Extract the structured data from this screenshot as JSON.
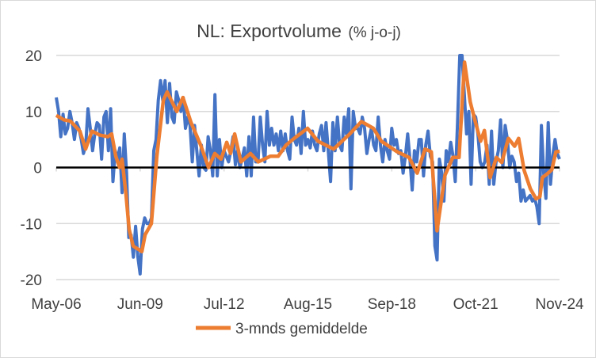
{
  "chart_data": {
    "type": "line",
    "title": "NL: Exportvolume",
    "title_unit": "(% j-o-j)",
    "xlabel": "",
    "ylabel": "",
    "ylim": [
      -20,
      20
    ],
    "yticks": [
      "20",
      "10",
      "0",
      "-10",
      "-20"
    ],
    "ytick_values": [
      20,
      10,
      0,
      -10,
      -20
    ],
    "xticks": [
      "May-06",
      "Jun-09",
      "Jul-12",
      "Aug-15",
      "Sep-18",
      "Oct-21",
      "Nov-24"
    ],
    "xtick_month_index": [
      0,
      37,
      74,
      111,
      148,
      185,
      222
    ],
    "x_start": "May-06",
    "x_frequency": "monthly",
    "grid": true,
    "legend_position": "bottom",
    "colors": {
      "monthly": "#4472c4",
      "avg": "#ed7d31",
      "zero": "#000000",
      "grid": "#d9d9d9"
    },
    "series": [
      {
        "name": "",
        "in_legend": false,
        "values": [
          12.5,
          10,
          5.5,
          9.5,
          6,
          7,
          10,
          8,
          5,
          8,
          7,
          5,
          2.5,
          4,
          10.5,
          7,
          3,
          6,
          8,
          7.5,
          1.5,
          9,
          10,
          3,
          10.5,
          -2.5,
          3,
          1.5,
          3.5,
          -4.5,
          6,
          -1,
          -12.5,
          -12,
          -16,
          -10.5,
          -16,
          -19,
          -11,
          -9,
          -10,
          -10,
          -9,
          3,
          5,
          12,
          15.5,
          12,
          15.5,
          8,
          15,
          9,
          8,
          13.5,
          12,
          10,
          12.5,
          7,
          9,
          7.5,
          1,
          7.5,
          3,
          -1.5,
          4,
          0,
          -0.5,
          5.5,
          3,
          -1.5,
          13,
          -1.5,
          5,
          0,
          3,
          2,
          1,
          3,
          5.5,
          0.5,
          3,
          0,
          1.5,
          3.5,
          -1.5,
          5.5,
          -1.5,
          9,
          1,
          1,
          9,
          4,
          1,
          10,
          4,
          7,
          4,
          6,
          3,
          6.5,
          3,
          6,
          3,
          1.5,
          9,
          5,
          4,
          7,
          2.5,
          10,
          4,
          5,
          3.5,
          6.5,
          4,
          3,
          6,
          7.5,
          3,
          8,
          3,
          -2.5,
          8,
          3,
          9,
          4,
          3,
          9,
          6,
          10.5,
          -3.8,
          10,
          7,
          7,
          6,
          9,
          7,
          2.5,
          5,
          7,
          4,
          3,
          9,
          4,
          1,
          5,
          3,
          1.5,
          7,
          4,
          5,
          2.5,
          3,
          -1,
          2,
          6,
          1.5,
          -4,
          3,
          1,
          5,
          5,
          -1.5,
          4,
          6.5,
          2,
          1,
          -14,
          -16.5,
          1.5,
          -1,
          -6,
          3,
          1,
          4.5,
          2,
          -2.5,
          8,
          20,
          20,
          13,
          6,
          10,
          -3,
          9.5,
          9,
          6,
          1,
          0,
          1,
          4,
          -3,
          6.5,
          -3,
          1,
          3,
          8.5,
          0,
          7.5,
          5,
          0,
          2,
          1,
          -2.5,
          -1,
          -6,
          -4,
          -6,
          -5.5,
          -5,
          -6,
          -5.5,
          -7,
          -10,
          7.5,
          -1,
          -5.5,
          8,
          -3,
          2,
          5,
          2.5,
          1.5
        ]
      },
      {
        "name": "3-mnds gemiddelde",
        "in_legend": true,
        "points_year_value": [
          [
            2006.33,
            9.3
          ],
          [
            2006.62,
            8.5
          ],
          [
            2006.85,
            8.3
          ],
          [
            2007.2,
            6.5
          ],
          [
            2007.41,
            3.3
          ],
          [
            2007.64,
            6.5
          ],
          [
            2007.93,
            5.8
          ],
          [
            2008.23,
            5.5
          ],
          [
            2008.37,
            6
          ],
          [
            2008.52,
            2
          ],
          [
            2008.66,
            0
          ],
          [
            2008.75,
            1.5
          ],
          [
            2008.9,
            -5
          ],
          [
            2009.01,
            -11
          ],
          [
            2009.16,
            -14
          ],
          [
            2009.48,
            -15
          ],
          [
            2009.6,
            -12
          ],
          [
            2009.83,
            -10
          ],
          [
            2010.03,
            2
          ],
          [
            2010.27,
            12
          ],
          [
            2010.41,
            13.5
          ],
          [
            2010.56,
            12
          ],
          [
            2010.76,
            10
          ],
          [
            2010.99,
            12.5
          ],
          [
            2011.29,
            8
          ],
          [
            2011.64,
            4
          ],
          [
            2011.93,
            0
          ],
          [
            2012.16,
            2.5
          ],
          [
            2012.39,
            1.5
          ],
          [
            2012.6,
            4.5
          ],
          [
            2012.74,
            2.5
          ],
          [
            2012.89,
            6
          ],
          [
            2013.12,
            1
          ],
          [
            2013.47,
            2.5
          ],
          [
            2013.76,
            1
          ],
          [
            2014.2,
            2
          ],
          [
            2014.49,
            2
          ],
          [
            2014.78,
            4
          ],
          [
            2015.08,
            5.2
          ],
          [
            2015.57,
            7
          ],
          [
            2015.95,
            4.7
          ],
          [
            2016.53,
            3.3
          ],
          [
            2017.12,
            6
          ],
          [
            2017.55,
            8.2
          ],
          [
            2017.99,
            7
          ],
          [
            2018.28,
            4.7
          ],
          [
            2018.87,
            2.8
          ],
          [
            2019.3,
            1.8
          ],
          [
            2019.6,
            -1
          ],
          [
            2019.89,
            3.3
          ],
          [
            2020.12,
            2.8
          ],
          [
            2020.33,
            -11.3
          ],
          [
            2020.62,
            -1.4
          ],
          [
            2020.91,
            1.8
          ],
          [
            2021.14,
            1.8
          ],
          [
            2021.34,
            18.8
          ],
          [
            2021.55,
            11.7
          ],
          [
            2021.72,
            8.5
          ],
          [
            2021.93,
            4.7
          ],
          [
            2022.07,
            6.6
          ],
          [
            2022.28,
            -1.8
          ],
          [
            2022.51,
            1.8
          ],
          [
            2022.71,
            0.9
          ],
          [
            2022.95,
            5.2
          ],
          [
            2023.18,
            3.8
          ],
          [
            2023.33,
            5.2
          ],
          [
            2023.53,
            -0.5
          ],
          [
            2023.76,
            -3.8
          ],
          [
            2023.97,
            -5.6
          ],
          [
            2024.11,
            -5.2
          ],
          [
            2024.2,
            -1.8
          ],
          [
            2024.41,
            -1
          ],
          [
            2024.55,
            -0.4
          ],
          [
            2024.7,
            2.8
          ],
          [
            2024.84,
            2.9
          ]
        ]
      }
    ]
  }
}
